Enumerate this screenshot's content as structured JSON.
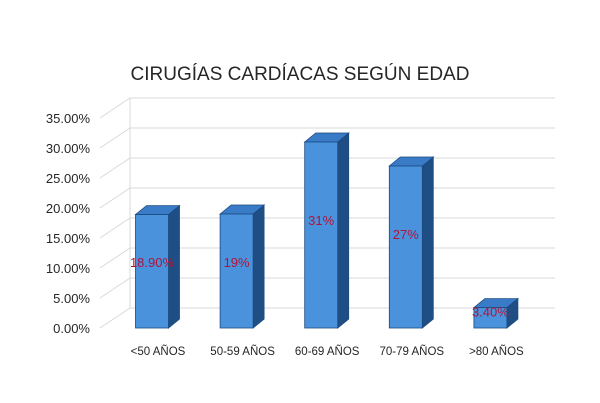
{
  "chart_data": {
    "type": "bar",
    "title": "CIRUGÍAS CARDÍACAS SEGÚN EDAD",
    "categories": [
      "<50 AÑOS",
      "50-59 AÑOS",
      "60-69 AÑOS",
      "70-79 AÑOS",
      ">80 AÑOS"
    ],
    "values": [
      18.9,
      19,
      31,
      27,
      3.4
    ],
    "data_labels": [
      "18.90%",
      "19%",
      "31%",
      "27%",
      "3.40%"
    ],
    "y_ticks": [
      "0.00%",
      "5.00%",
      "10.00%",
      "15.00%",
      "20.00%",
      "25.00%",
      "30.00%",
      "35.00%"
    ],
    "ylim": [
      0,
      35
    ],
    "xlabel": "",
    "ylabel": "",
    "grid": true,
    "legend": "none",
    "three_d": true,
    "colors": {
      "bar_front": "#4a93dc",
      "bar_side": "#1f4e85",
      "bar_top": "#3a7bc8",
      "bar_outline": "#1b4a80",
      "label": "#b0133a",
      "grid": "#d9d9d9",
      "text": "#262626"
    }
  }
}
